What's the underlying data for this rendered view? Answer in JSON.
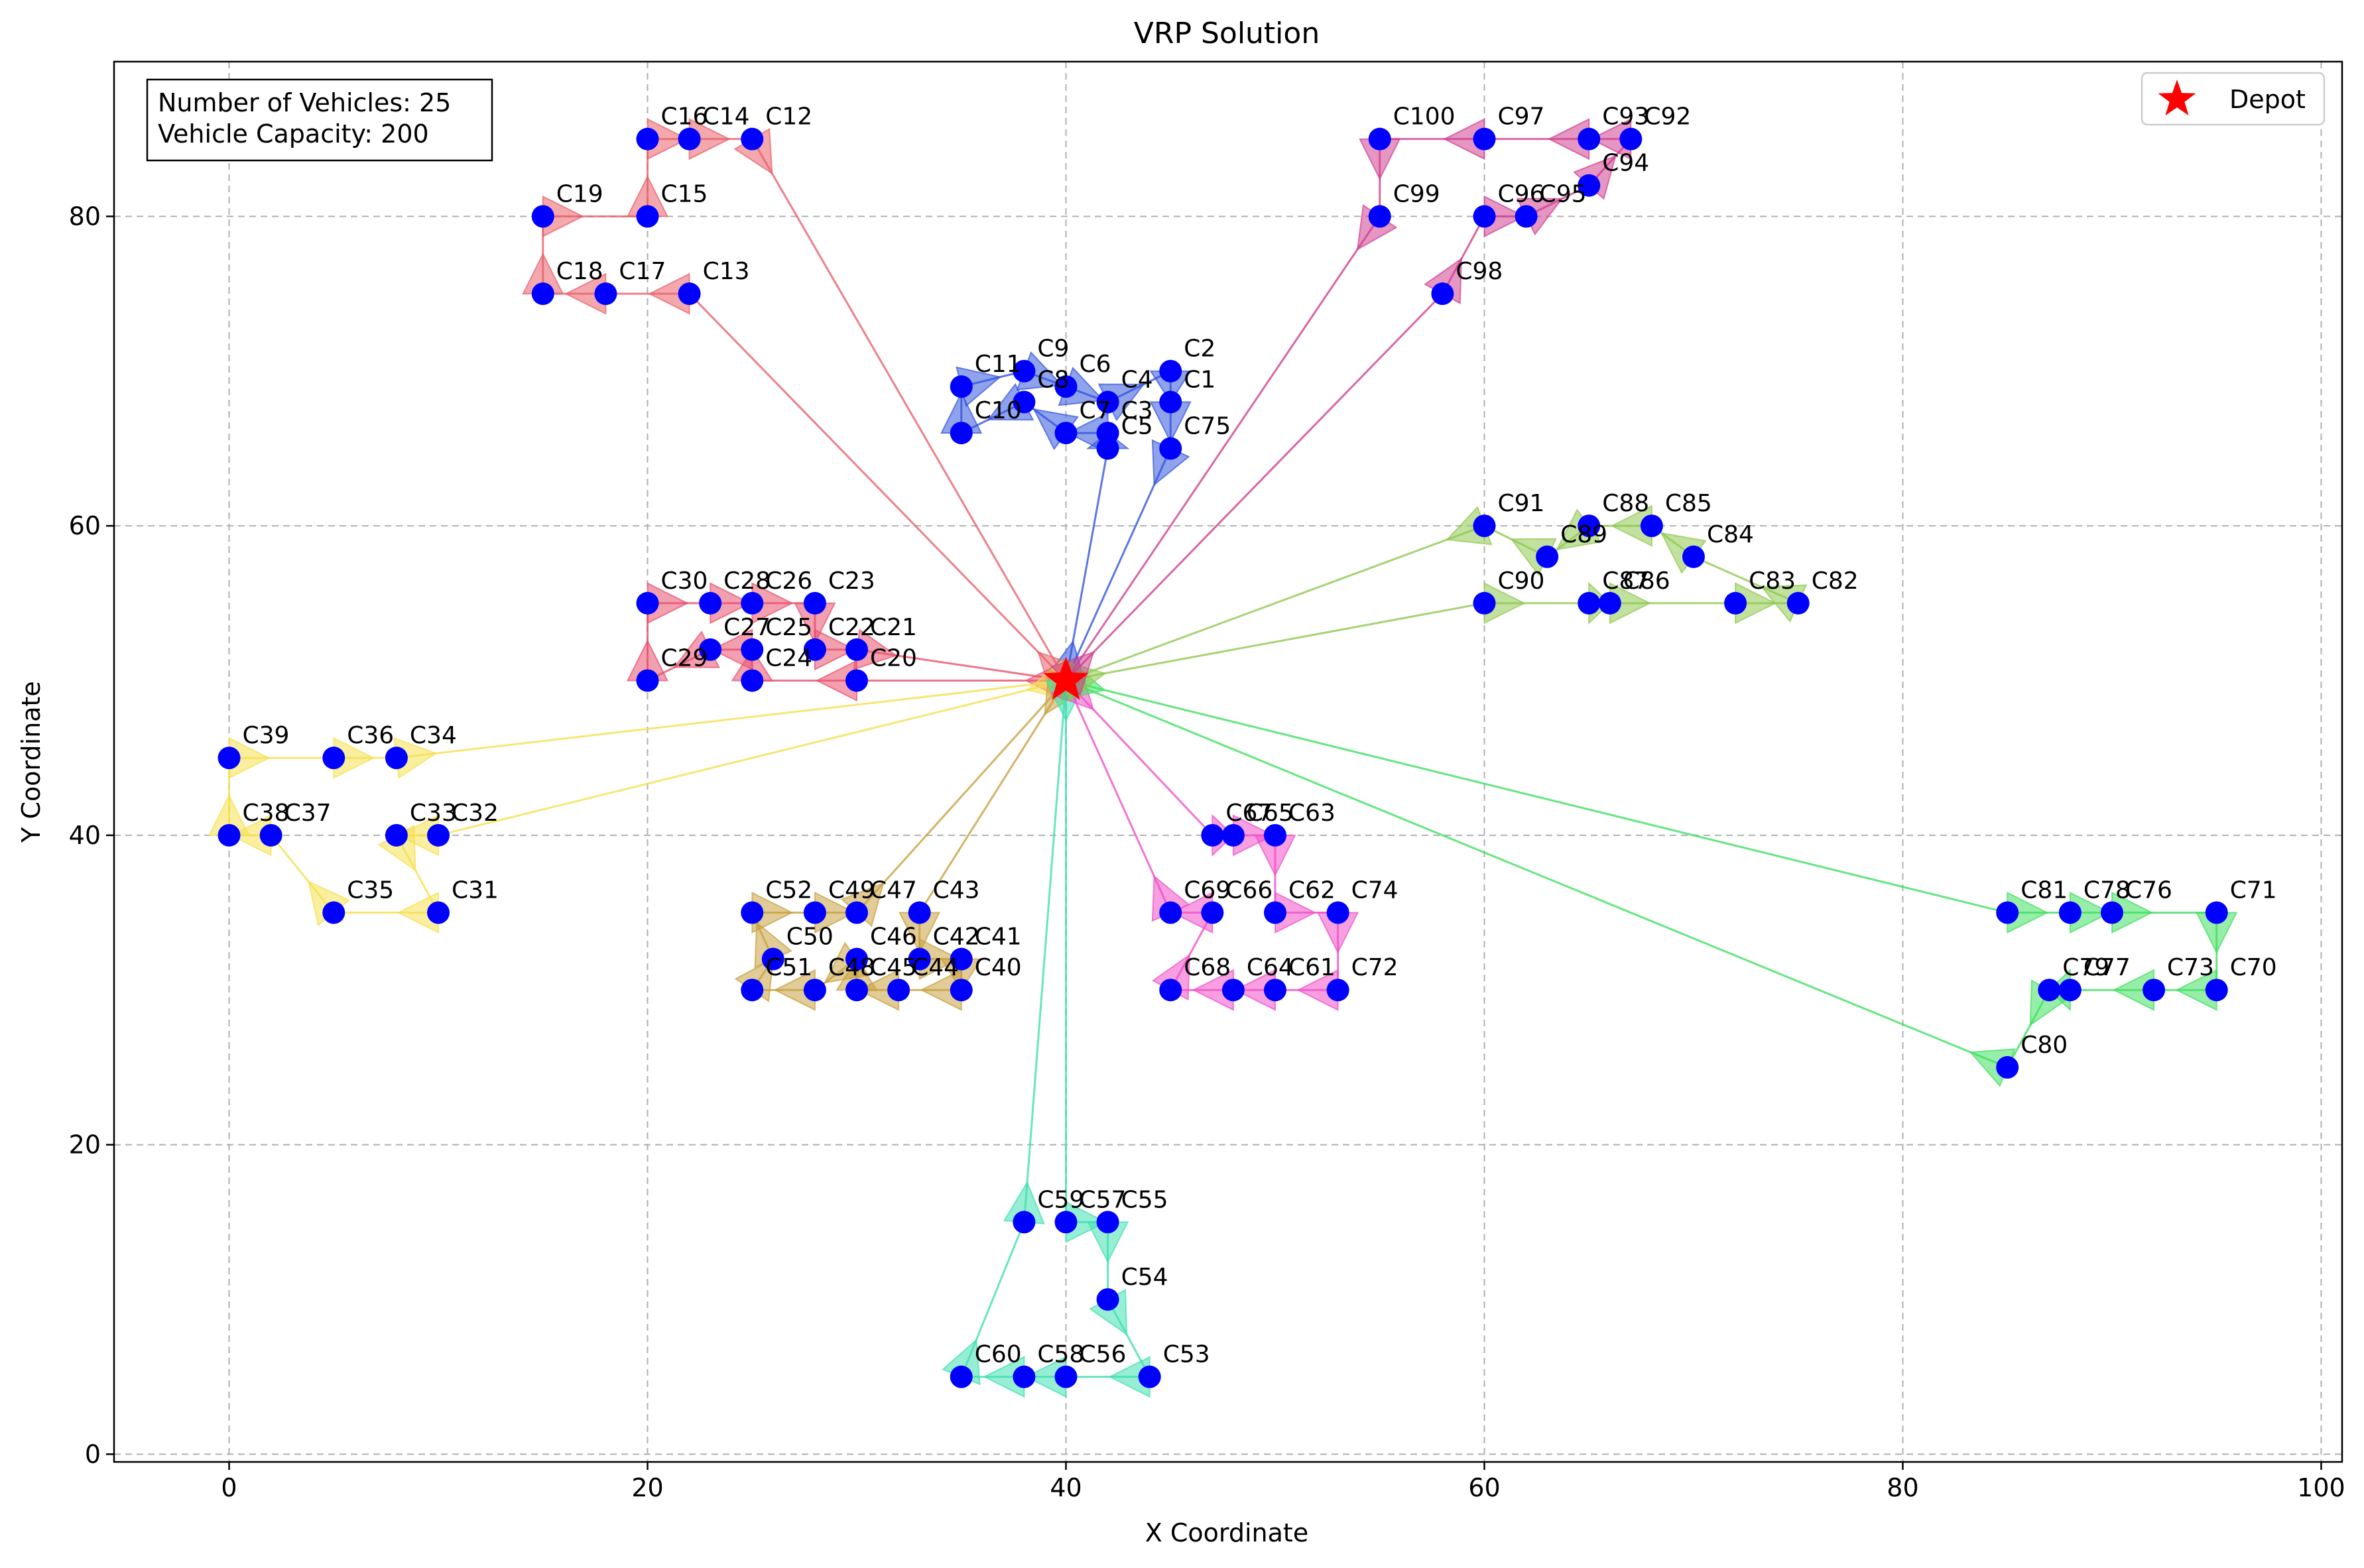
{
  "chart_data": {
    "type": "scatter",
    "title": "VRP Solution",
    "xlabel": "X Coordinate",
    "ylabel": "Y Coordinate",
    "xlim": [
      -5.5,
      101
    ],
    "ylim": [
      -0.5,
      90
    ],
    "xticks": [
      0,
      20,
      40,
      60,
      80,
      100
    ],
    "yticks": [
      0,
      20,
      40,
      60,
      80
    ],
    "grid": true,
    "legend": {
      "placement": "top-right",
      "entries": [
        "Depot"
      ]
    },
    "info_box": {
      "lines": [
        "Number of Vehicles: 25",
        "Vehicle Capacity: 200"
      ],
      "placement": "top-left"
    },
    "depot": {
      "x": 40,
      "y": 50,
      "color": "#ff0000"
    },
    "customer_color": "#0000ff",
    "customers": [
      {
        "id": "C1",
        "x": 45,
        "y": 68
      },
      {
        "id": "C2",
        "x": 45,
        "y": 70
      },
      {
        "id": "C3",
        "x": 42,
        "y": 66
      },
      {
        "id": "C4",
        "x": 42,
        "y": 68
      },
      {
        "id": "C5",
        "x": 42,
        "y": 65
      },
      {
        "id": "C6",
        "x": 40,
        "y": 69
      },
      {
        "id": "C7",
        "x": 40,
        "y": 66
      },
      {
        "id": "C8",
        "x": 38,
        "y": 68
      },
      {
        "id": "C9",
        "x": 38,
        "y": 70
      },
      {
        "id": "C10",
        "x": 35,
        "y": 66
      },
      {
        "id": "C11",
        "x": 35,
        "y": 69
      },
      {
        "id": "C12",
        "x": 25,
        "y": 85
      },
      {
        "id": "C13",
        "x": 22,
        "y": 75
      },
      {
        "id": "C14",
        "x": 22,
        "y": 85
      },
      {
        "id": "C15",
        "x": 20,
        "y": 80
      },
      {
        "id": "C16",
        "x": 20,
        "y": 85
      },
      {
        "id": "C17",
        "x": 18,
        "y": 75
      },
      {
        "id": "C18",
        "x": 15,
        "y": 75
      },
      {
        "id": "C19",
        "x": 15,
        "y": 80
      },
      {
        "id": "C20",
        "x": 30,
        "y": 50
      },
      {
        "id": "C21",
        "x": 30,
        "y": 52
      },
      {
        "id": "C22",
        "x": 28,
        "y": 52
      },
      {
        "id": "C23",
        "x": 28,
        "y": 55
      },
      {
        "id": "C24",
        "x": 25,
        "y": 50
      },
      {
        "id": "C25",
        "x": 25,
        "y": 52
      },
      {
        "id": "C26",
        "x": 25,
        "y": 55
      },
      {
        "id": "C27",
        "x": 23,
        "y": 52
      },
      {
        "id": "C28",
        "x": 23,
        "y": 55
      },
      {
        "id": "C29",
        "x": 20,
        "y": 50
      },
      {
        "id": "C30",
        "x": 20,
        "y": 55
      },
      {
        "id": "C31",
        "x": 10,
        "y": 35
      },
      {
        "id": "C32",
        "x": 10,
        "y": 40
      },
      {
        "id": "C33",
        "x": 8,
        "y": 40
      },
      {
        "id": "C34",
        "x": 8,
        "y": 45
      },
      {
        "id": "C35",
        "x": 5,
        "y": 35
      },
      {
        "id": "C36",
        "x": 5,
        "y": 45
      },
      {
        "id": "C37",
        "x": 2,
        "y": 40
      },
      {
        "id": "C38",
        "x": 0,
        "y": 40
      },
      {
        "id": "C39",
        "x": 0,
        "y": 45
      },
      {
        "id": "C40",
        "x": 35,
        "y": 30
      },
      {
        "id": "C41",
        "x": 35,
        "y": 32
      },
      {
        "id": "C42",
        "x": 33,
        "y": 32
      },
      {
        "id": "C43",
        "x": 33,
        "y": 35
      },
      {
        "id": "C44",
        "x": 32,
        "y": 30
      },
      {
        "id": "C45",
        "x": 30,
        "y": 30
      },
      {
        "id": "C46",
        "x": 30,
        "y": 32
      },
      {
        "id": "C47",
        "x": 30,
        "y": 35
      },
      {
        "id": "C48",
        "x": 28,
        "y": 30
      },
      {
        "id": "C49",
        "x": 28,
        "y": 35
      },
      {
        "id": "C50",
        "x": 26,
        "y": 32
      },
      {
        "id": "C51",
        "x": 25,
        "y": 30
      },
      {
        "id": "C52",
        "x": 25,
        "y": 35
      },
      {
        "id": "C53",
        "x": 44,
        "y": 5
      },
      {
        "id": "C54",
        "x": 42,
        "y": 10
      },
      {
        "id": "C55",
        "x": 42,
        "y": 15
      },
      {
        "id": "C56",
        "x": 40,
        "y": 5
      },
      {
        "id": "C57",
        "x": 40,
        "y": 15
      },
      {
        "id": "C58",
        "x": 38,
        "y": 5
      },
      {
        "id": "C59",
        "x": 38,
        "y": 15
      },
      {
        "id": "C60",
        "x": 35,
        "y": 5
      },
      {
        "id": "C61",
        "x": 50,
        "y": 30
      },
      {
        "id": "C62",
        "x": 50,
        "y": 35
      },
      {
        "id": "C63",
        "x": 50,
        "y": 40
      },
      {
        "id": "C64",
        "x": 48,
        "y": 30
      },
      {
        "id": "C65",
        "x": 48,
        "y": 40
      },
      {
        "id": "C66",
        "x": 47,
        "y": 35
      },
      {
        "id": "C67",
        "x": 47,
        "y": 40
      },
      {
        "id": "C68",
        "x": 45,
        "y": 30
      },
      {
        "id": "C69",
        "x": 45,
        "y": 35
      },
      {
        "id": "C70",
        "x": 95,
        "y": 30
      },
      {
        "id": "C71",
        "x": 95,
        "y": 35
      },
      {
        "id": "C72",
        "x": 53,
        "y": 30
      },
      {
        "id": "C73",
        "x": 92,
        "y": 30
      },
      {
        "id": "C74",
        "x": 53,
        "y": 35
      },
      {
        "id": "C75",
        "x": 45,
        "y": 65
      },
      {
        "id": "C76",
        "x": 90,
        "y": 35
      },
      {
        "id": "C77",
        "x": 88,
        "y": 30
      },
      {
        "id": "C78",
        "x": 88,
        "y": 35
      },
      {
        "id": "C79",
        "x": 87,
        "y": 30
      },
      {
        "id": "C80",
        "x": 85,
        "y": 25
      },
      {
        "id": "C81",
        "x": 85,
        "y": 35
      },
      {
        "id": "C82",
        "x": 75,
        "y": 55
      },
      {
        "id": "C83",
        "x": 72,
        "y": 55
      },
      {
        "id": "C84",
        "x": 70,
        "y": 58
      },
      {
        "id": "C85",
        "x": 68,
        "y": 60
      },
      {
        "id": "C86",
        "x": 66,
        "y": 55
      },
      {
        "id": "C87",
        "x": 65,
        "y": 55
      },
      {
        "id": "C88",
        "x": 65,
        "y": 60
      },
      {
        "id": "C89",
        "x": 63,
        "y": 58
      },
      {
        "id": "C90",
        "x": 60,
        "y": 55
      },
      {
        "id": "C91",
        "x": 60,
        "y": 60
      },
      {
        "id": "C92",
        "x": 67,
        "y": 85
      },
      {
        "id": "C93",
        "x": 65,
        "y": 85
      },
      {
        "id": "C94",
        "x": 65,
        "y": 82
      },
      {
        "id": "C95",
        "x": 62,
        "y": 80
      },
      {
        "id": "C96",
        "x": 60,
        "y": 80
      },
      {
        "id": "C97",
        "x": 60,
        "y": 85
      },
      {
        "id": "C98",
        "x": 58,
        "y": 75
      },
      {
        "id": "C99",
        "x": 55,
        "y": 80
      },
      {
        "id": "C100",
        "x": 55,
        "y": 85
      }
    ],
    "routes": [
      {
        "color": "#3355dd",
        "stops": [
          "C5",
          "C3",
          "C7",
          "C8",
          "C10",
          "C11",
          "C9",
          "C6",
          "C4",
          "C2",
          "C1",
          "C75"
        ]
      },
      {
        "color": "#e8606a",
        "stops": [
          "C13",
          "C17",
          "C18",
          "C19",
          "C15",
          "C16",
          "C14",
          "C12"
        ]
      },
      {
        "color": "#e8506e",
        "stops": [
          "C20",
          "C24",
          "C25",
          "C27",
          "C29",
          "C30",
          "C28",
          "C26",
          "C23",
          "C22",
          "C21"
        ]
      },
      {
        "color": "#f5e050",
        "stops": [
          "C32",
          "C33",
          "C31",
          "C35",
          "C37",
          "C38",
          "C39",
          "C36",
          "C34"
        ]
      },
      {
        "color": "#c8a040",
        "stops": [
          "C43",
          "C42",
          "C41",
          "C40",
          "C44",
          "C45",
          "C46",
          "C48",
          "C51",
          "C50",
          "C52",
          "C49",
          "C47"
        ]
      },
      {
        "color": "#40e0b0",
        "stops": [
          "C57",
          "C55",
          "C54",
          "C53",
          "C56",
          "C58",
          "C60",
          "C59"
        ]
      },
      {
        "color": "#f050c8",
        "stops": [
          "C67",
          "C65",
          "C63",
          "C62",
          "C74",
          "C72",
          "C61",
          "C64",
          "C68",
          "C66",
          "C69"
        ]
      },
      {
        "color": "#40e060",
        "stops": [
          "C81",
          "C78",
          "C76",
          "C71",
          "C70",
          "C73",
          "C77",
          "C79",
          "C80"
        ]
      },
      {
        "color": "#90c850",
        "stops": [
          "C90",
          "C87",
          "C86",
          "C83",
          "C82",
          "C84",
          "C85",
          "C88",
          "C89",
          "C91"
        ]
      },
      {
        "color": "#d04090",
        "stops": [
          "C98",
          "C96",
          "C95",
          "C94",
          "C92",
          "C93",
          "C97",
          "C100",
          "C99"
        ]
      }
    ]
  }
}
